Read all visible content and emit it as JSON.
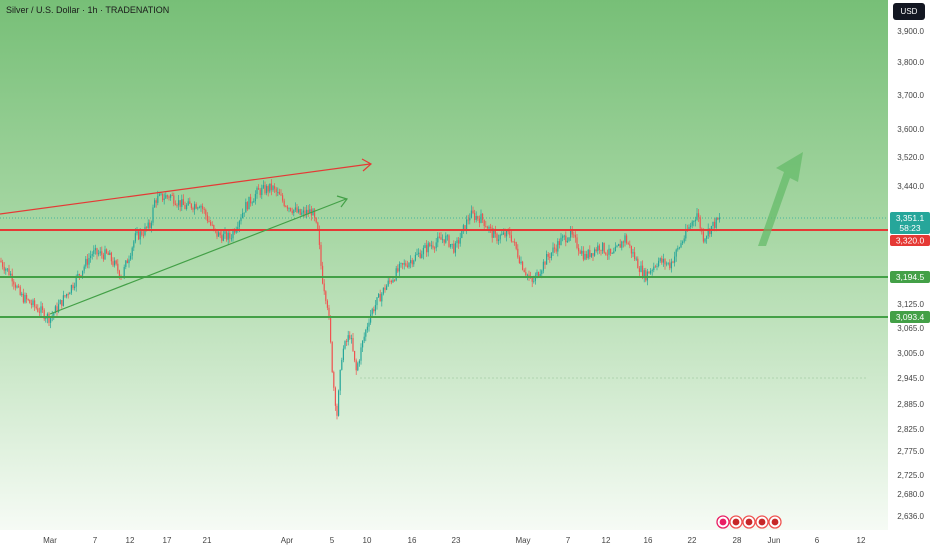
{
  "chart_data": {
    "type": "candlestick",
    "title": "Silver / U.S. Dollar · 1h · TRADENATION",
    "currency": "USD",
    "y_axis": {
      "ticks": [
        "3,900.0",
        "3,800.0",
        "3,700.0",
        "3,600.0",
        "3,520.0",
        "3,440.0",
        "3,125.0",
        "3,065.0",
        "3,005.0",
        "2,945.0",
        "2,885.0",
        "2,825.0",
        "2,775.0",
        "2,725.0",
        "2,680.0",
        "2,636.0"
      ]
    },
    "x_axis": {
      "ticks": [
        "Mar",
        "7",
        "12",
        "17",
        "21",
        "Apr",
        "5",
        "10",
        "16",
        "23",
        "May",
        "7",
        "12",
        "16",
        "22",
        "28",
        "Jun",
        "6",
        "12"
      ]
    },
    "price_labels": {
      "current": "3,351.1",
      "countdown": "58:23",
      "resistance": "3,320.0",
      "support_1": "3,194.5",
      "support_2": "3,093.4"
    },
    "levels": {
      "resistance": 3320.0,
      "support_1": 3194.5,
      "support_2": 3093.4,
      "current": 3351.1
    },
    "colors": {
      "up": "#26a69a",
      "down": "#ef5350",
      "resistance": "#e53935",
      "support": "#43a047",
      "label_current": "#26a69a",
      "arrow_up": "#66bb6a"
    },
    "events": [
      "⚡",
      "🇺🇸",
      "🇺🇸",
      "🇺🇸",
      "🇺🇸"
    ]
  }
}
